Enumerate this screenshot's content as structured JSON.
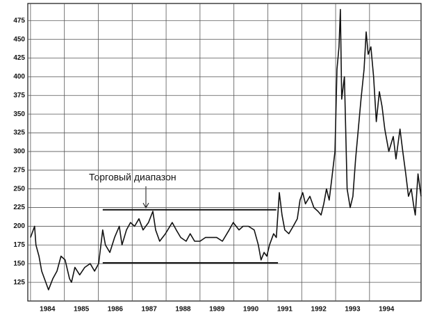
{
  "chart_data": {
    "type": "line",
    "annotation": "Торговый диапазон",
    "xlim": [
      1983.92,
      1995.52
    ],
    "ylim": [
      100,
      498
    ],
    "xticks": [
      1984,
      1985,
      1986,
      1987,
      1988,
      1989,
      1990,
      1991,
      1992,
      1993,
      1994
    ],
    "yticks": [
      125,
      150,
      175,
      200,
      225,
      250,
      275,
      300,
      325,
      350,
      375,
      400,
      425,
      450,
      475
    ],
    "grid": true,
    "reference_lines": [
      {
        "y": 222,
        "x": [
          1986.13,
          1991.25
        ]
      },
      {
        "y": 151,
        "x": [
          1986.13,
          1991.3
        ]
      }
    ],
    "series": [
      {
        "color": "#111111",
        "x": [
          1984.0,
          1984.12,
          1984.16,
          1984.25,
          1984.33,
          1984.45,
          1984.53,
          1984.66,
          1984.78,
          1984.9,
          1985.02,
          1985.15,
          1985.21,
          1985.31,
          1985.45,
          1985.6,
          1985.76,
          1985.89,
          1986.01,
          1986.13,
          1986.21,
          1986.34,
          1986.48,
          1986.62,
          1986.7,
          1986.83,
          1986.95,
          1987.07,
          1987.2,
          1987.32,
          1987.48,
          1987.61,
          1987.69,
          1987.81,
          1987.98,
          1988.18,
          1988.3,
          1988.43,
          1988.59,
          1988.71,
          1988.84,
          1989.0,
          1989.16,
          1989.33,
          1989.49,
          1989.66,
          1989.86,
          1989.98,
          1990.15,
          1990.27,
          1990.43,
          1990.6,
          1990.72,
          1990.8,
          1990.89,
          1990.97,
          1991.05,
          1991.17,
          1991.25,
          1991.34,
          1991.42,
          1991.5,
          1991.62,
          1991.75,
          1991.87,
          1991.95,
          1992.03,
          1992.11,
          1992.24,
          1992.36,
          1992.48,
          1992.57,
          1992.65,
          1992.73,
          1992.81,
          1992.89,
          1992.98,
          1993.04,
          1993.1,
          1993.14,
          1993.18,
          1993.26,
          1993.34,
          1993.43,
          1993.51,
          1993.59,
          1993.67,
          1993.75,
          1993.84,
          1993.9,
          1993.96,
          1994.04,
          1994.12,
          1994.2,
          1994.29,
          1994.37,
          1994.45,
          1994.57,
          1994.7,
          1994.78,
          1994.9,
          1994.98,
          1995.07,
          1995.15,
          1995.23,
          1995.31,
          1995.35,
          1995.43,
          1995.52
        ],
        "values": [
          185,
          200,
          175,
          160,
          140,
          125,
          115,
          130,
          140,
          160,
          155,
          130,
          125,
          145,
          135,
          145,
          150,
          140,
          150,
          195,
          175,
          165,
          185,
          200,
          175,
          195,
          205,
          200,
          210,
          195,
          205,
          220,
          195,
          180,
          190,
          205,
          195,
          185,
          180,
          190,
          180,
          180,
          185,
          185,
          185,
          180,
          195,
          205,
          195,
          200,
          200,
          195,
          175,
          155,
          165,
          160,
          175,
          190,
          185,
          245,
          215,
          195,
          190,
          200,
          210,
          235,
          245,
          230,
          240,
          225,
          220,
          215,
          230,
          250,
          235,
          265,
          300,
          410,
          440,
          490,
          370,
          400,
          250,
          225,
          240,
          290,
          330,
          370,
          410,
          460,
          430,
          440,
          400,
          340,
          380,
          360,
          330,
          300,
          320,
          290,
          330,
          300,
          270,
          240,
          250,
          225,
          215,
          270,
          240
        ]
      }
    ]
  }
}
